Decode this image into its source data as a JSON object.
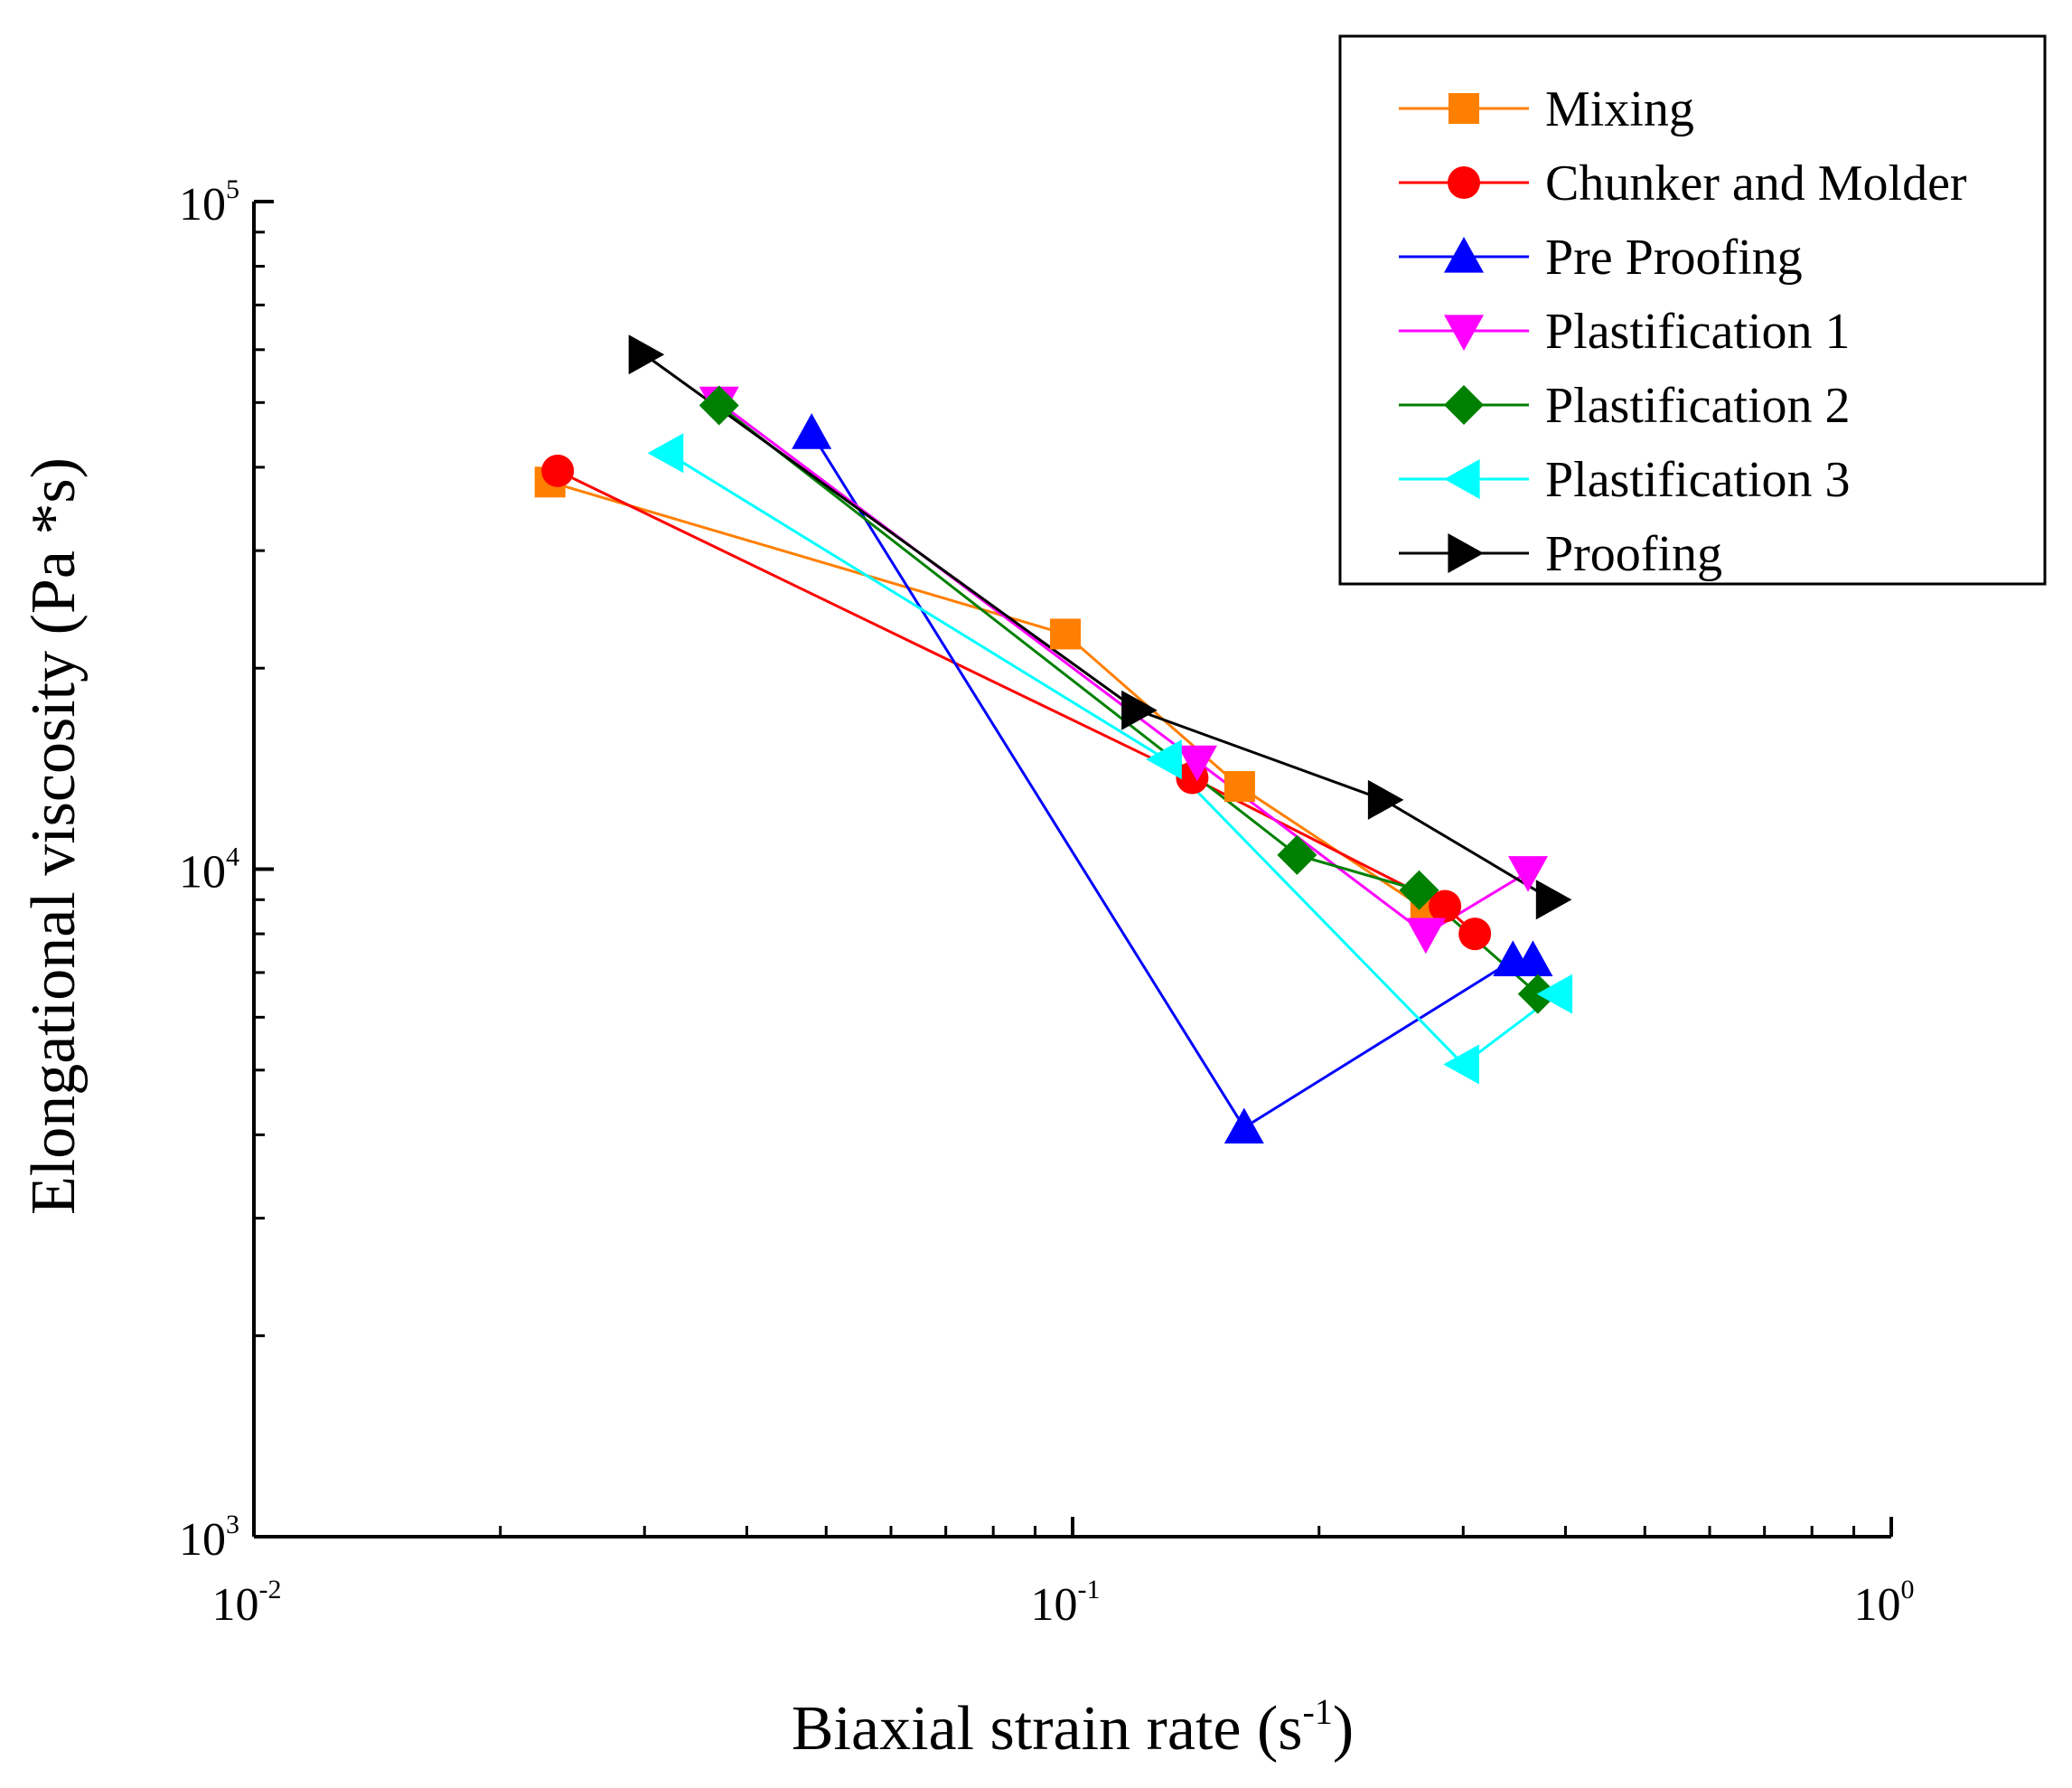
{
  "chart_data": {
    "type": "scatter",
    "title": "",
    "xlabel": "Biaxial strain rate (s",
    "xlabel_sup": "-1",
    "xlabel_end": ")",
    "ylabel": "Elongational viscosity (Pa *s)",
    "xscale": "log",
    "yscale": "log",
    "xlim": [
      0.01,
      1
    ],
    "ylim": [
      1000,
      100000
    ],
    "x_ticks": [
      {
        "base": "10",
        "exp": "-2",
        "value": 0.01
      },
      {
        "base": "10",
        "exp": "-1",
        "value": 0.1
      },
      {
        "base": "10",
        "exp": "0",
        "value": 1
      }
    ],
    "y_ticks": [
      {
        "base": "10",
        "exp": "3",
        "value": 1000
      },
      {
        "base": "10",
        "exp": "4",
        "value": 10000
      },
      {
        "base": "10",
        "exp": "5",
        "value": 100000
      }
    ],
    "legend_position": "top-right",
    "series": [
      {
        "name": "Mixing",
        "color": "#ff7f00",
        "marker": "square",
        "x": [
          0.023,
          0.098,
          0.16,
          0.27
        ],
        "y": [
          38000,
          22500,
          13300,
          8700
        ]
      },
      {
        "name": "Chunker and Molder",
        "color": "#ff0000",
        "marker": "circle",
        "x": [
          0.0235,
          0.14,
          0.285,
          0.31
        ],
        "y": [
          39500,
          13700,
          8800,
          8000
        ]
      },
      {
        "name": "Pre Proofing",
        "color": "#0000ff",
        "marker": "triangle-up",
        "x": [
          0.048,
          0.162,
          0.345,
          0.365
        ],
        "y": [
          45000,
          4100,
          7300,
          7300
        ]
      },
      {
        "name": "Plastification 1",
        "color": "#ff00ff",
        "marker": "triangle-down",
        "x": [
          0.037,
          0.142,
          0.27,
          0.36
        ],
        "y": [
          50000,
          14500,
          8000,
          9900
        ]
      },
      {
        "name": "Plastification 2",
        "color": "#008000",
        "marker": "diamond",
        "x": [
          0.037,
          0.188,
          0.265,
          0.37
        ],
        "y": [
          49500,
          10500,
          9300,
          6500
        ]
      },
      {
        "name": "Plastification 3",
        "color": "#00ffff",
        "marker": "triangle-left",
        "x": [
          0.032,
          0.13,
          0.3,
          0.39
        ],
        "y": [
          42000,
          14600,
          5100,
          6500
        ]
      },
      {
        "name": "Proofing",
        "color": "#000000",
        "marker": "triangle-right",
        "x": [
          0.03,
          0.12,
          0.24,
          0.385
        ],
        "y": [
          59000,
          17300,
          12700,
          9000
        ]
      }
    ]
  }
}
